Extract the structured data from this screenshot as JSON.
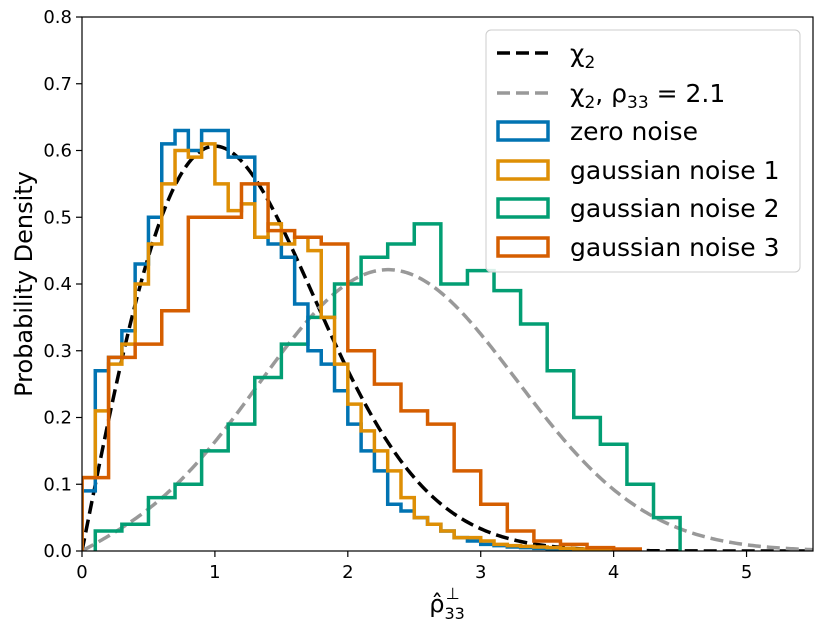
{
  "chart_data": {
    "type": "histogram",
    "title": "",
    "xlabel": "ρ̂",
    "xlabel_sub": "33",
    "xlabel_sup": "⊥",
    "ylabel": "Probability Density",
    "xlim": [
      0,
      5.5
    ],
    "ylim": [
      0,
      0.8
    ],
    "xticks": [
      0,
      1,
      2,
      3,
      4,
      5
    ],
    "yticks": [
      0.0,
      0.1,
      0.2,
      0.3,
      0.4,
      0.5,
      0.6,
      0.7,
      0.8
    ],
    "xtick_labels": [
      "0",
      "1",
      "2",
      "3",
      "4",
      "5"
    ],
    "ytick_labels": [
      "0.0",
      "0.1",
      "0.2",
      "0.3",
      "0.4",
      "0.5",
      "0.6",
      "0.7",
      "0.8"
    ],
    "legend_position": "top-right",
    "curves": [
      {
        "name": "χ2",
        "label_main": "χ",
        "label_sub": "2",
        "label_rest": "",
        "label_rest_sub": "",
        "label_tail": "",
        "color": "#000000",
        "style": "dashed",
        "k": 2,
        "mean": 0
      },
      {
        "name": "χ2, ρ33 = 2.1",
        "label_main": "χ",
        "label_sub": "2",
        "label_rest": ", ρ",
        "label_rest_sub": "33",
        "label_tail": " = 2.1",
        "color": "#999999",
        "style": "dashed",
        "k": 2,
        "mean": 2.1
      }
    ],
    "series": [
      {
        "name": "zero noise",
        "color": "#0173b2",
        "edges": [
          0.0,
          0.1,
          0.2,
          0.3,
          0.4,
          0.5,
          0.6,
          0.7,
          0.8,
          0.9,
          1.0,
          1.1,
          1.2,
          1.3,
          1.4,
          1.5,
          1.6,
          1.7,
          1.8,
          1.9,
          2.0,
          2.1,
          2.2,
          2.3,
          2.4,
          2.5,
          2.6,
          2.7,
          2.8,
          2.9,
          3.0,
          3.1,
          3.2,
          3.3,
          3.4,
          3.5,
          3.6,
          3.7,
          3.8,
          3.9,
          4.0
        ],
        "values": [
          0.09,
          0.27,
          0.29,
          0.33,
          0.43,
          0.5,
          0.61,
          0.63,
          0.6,
          0.63,
          0.63,
          0.59,
          0.59,
          0.47,
          0.46,
          0.44,
          0.37,
          0.3,
          0.28,
          0.24,
          0.19,
          0.15,
          0.12,
          0.07,
          0.06,
          0.05,
          0.04,
          0.03,
          0.02,
          0.015,
          0.01,
          0.008,
          0.006,
          0.005,
          0.004,
          0.003,
          0.002,
          0.002,
          0.001,
          0.001
        ]
      },
      {
        "name": "gaussian noise 1",
        "color": "#de8f05",
        "edges": [
          0.0,
          0.1,
          0.2,
          0.3,
          0.4,
          0.5,
          0.6,
          0.7,
          0.8,
          0.9,
          1.0,
          1.1,
          1.2,
          1.3,
          1.4,
          1.5,
          1.6,
          1.7,
          1.8,
          1.9,
          2.0,
          2.1,
          2.2,
          2.3,
          2.4,
          2.5,
          2.6,
          2.7,
          2.8,
          2.9,
          3.0,
          3.1,
          3.2,
          3.3,
          3.4,
          3.5,
          3.6,
          3.7,
          3.8,
          3.9,
          4.0
        ],
        "values": [
          0.11,
          0.21,
          0.28,
          0.31,
          0.4,
          0.46,
          0.55,
          0.6,
          0.59,
          0.61,
          0.55,
          0.51,
          0.52,
          0.47,
          0.49,
          0.46,
          0.47,
          0.45,
          0.35,
          0.28,
          0.22,
          0.18,
          0.15,
          0.12,
          0.08,
          0.05,
          0.04,
          0.03,
          0.02,
          0.02,
          0.015,
          0.01,
          0.008,
          0.007,
          0.006,
          0.005,
          0.004,
          0.003,
          0.002,
          0.001
        ]
      },
      {
        "name": "gaussian noise 2",
        "color": "#029e73",
        "edges": [
          0.1,
          0.3,
          0.5,
          0.7,
          0.9,
          1.1,
          1.3,
          1.5,
          1.7,
          1.9,
          2.1,
          2.3,
          2.5,
          2.7,
          2.9,
          3.1,
          3.3,
          3.5,
          3.7,
          3.9,
          4.1,
          4.3,
          4.5
        ],
        "values": [
          0.03,
          0.04,
          0.08,
          0.1,
          0.15,
          0.19,
          0.26,
          0.31,
          0.35,
          0.4,
          0.44,
          0.46,
          0.49,
          0.4,
          0.42,
          0.39,
          0.34,
          0.27,
          0.2,
          0.16,
          0.1,
          0.05
        ]
      },
      {
        "name": "gaussian noise 3",
        "color": "#d55e00",
        "edges": [
          0.0,
          0.2,
          0.4,
          0.6,
          0.8,
          1.0,
          1.2,
          1.4,
          1.6,
          1.8,
          2.0,
          2.2,
          2.4,
          2.6,
          2.8,
          3.0,
          3.2,
          3.4,
          3.6,
          3.8,
          4.0,
          4.2
        ],
        "values": [
          0.11,
          0.29,
          0.31,
          0.36,
          0.5,
          0.5,
          0.55,
          0.48,
          0.47,
          0.46,
          0.3,
          0.25,
          0.21,
          0.19,
          0.12,
          0.07,
          0.03,
          0.015,
          0.01,
          0.005,
          0.003
        ]
      }
    ]
  }
}
